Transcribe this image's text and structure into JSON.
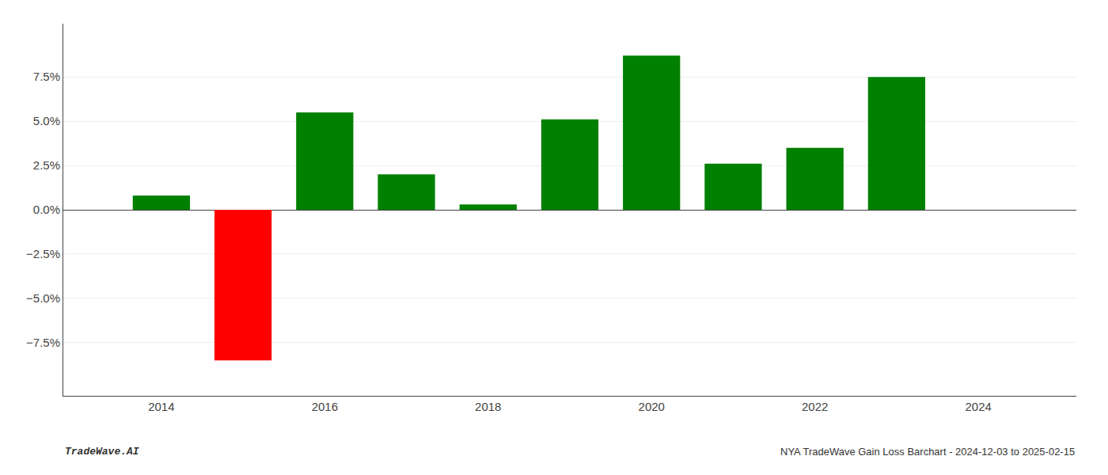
{
  "chart_data": {
    "type": "bar",
    "x": [
      2014,
      2015,
      2016,
      2017,
      2018,
      2019,
      2020,
      2021,
      2022,
      2023
    ],
    "values": [
      0.008,
      -0.085,
      0.055,
      0.02,
      0.003,
      0.051,
      0.087,
      0.026,
      0.035,
      0.075
    ],
    "colors": [
      "#008000",
      "#ff0000",
      "#008000",
      "#008000",
      "#008000",
      "#008000",
      "#008000",
      "#008000",
      "#008000",
      "#008000"
    ],
    "ylim": [
      -0.105,
      0.105
    ],
    "yticks": [
      {
        "value": -0.075,
        "label": "−7.5%"
      },
      {
        "value": -0.05,
        "label": "−5.0%"
      },
      {
        "value": -0.025,
        "label": "−2.5%"
      },
      {
        "value": 0.0,
        "label": "0.0%"
      },
      {
        "value": 0.025,
        "label": "2.5%"
      },
      {
        "value": 0.05,
        "label": "5.0%"
      },
      {
        "value": 0.075,
        "label": "7.5%"
      }
    ],
    "xlim": [
      2012.8,
      2025.2
    ],
    "xticks": [
      2014,
      2016,
      2018,
      2020,
      2022,
      2024
    ],
    "grid": true,
    "annotations": [
      "TradeWave.AI",
      "NYA TradeWave Gain Loss Barchart - 2024-12-03 to 2025-02-15"
    ]
  }
}
